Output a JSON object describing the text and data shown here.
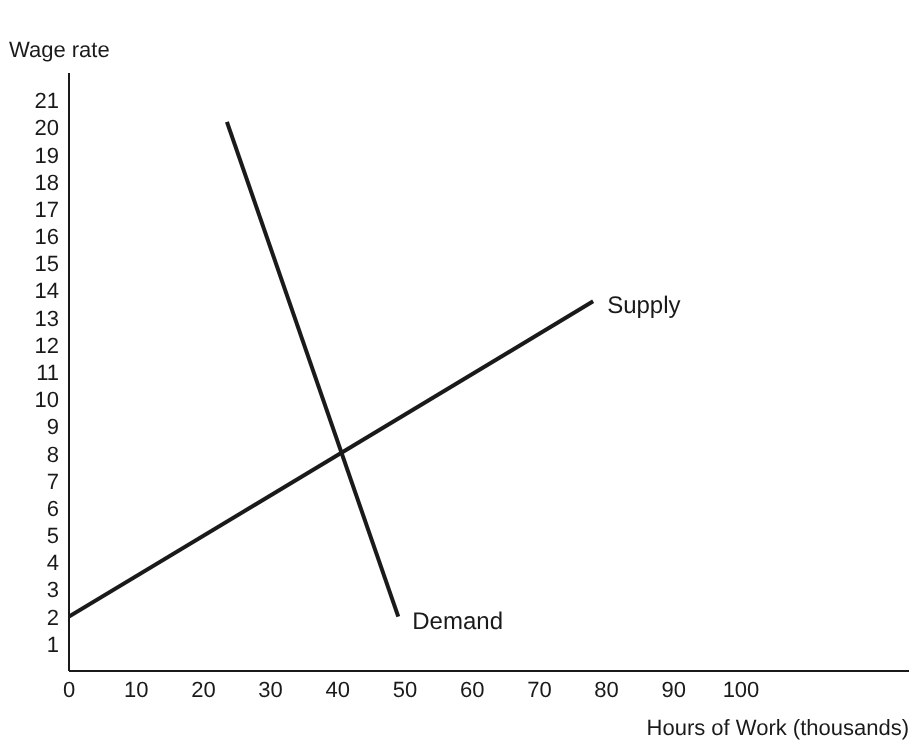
{
  "chart_data": {
    "type": "line",
    "xlabel": "Hours of Work (thousands)",
    "ylabel": "Wage rate",
    "xlim": [
      0,
      125
    ],
    "ylim": [
      0,
      22
    ],
    "xticks": [
      0,
      10,
      20,
      30,
      40,
      50,
      60,
      70,
      80,
      90,
      100
    ],
    "yticks": [
      1,
      2,
      3,
      4,
      5,
      6,
      7,
      8,
      9,
      10,
      11,
      12,
      13,
      14,
      15,
      16,
      17,
      18,
      19,
      20,
      21
    ],
    "series": [
      {
        "name": "Supply",
        "color": "#1a1a1a",
        "x": [
          0,
          78
        ],
        "values": [
          2,
          13.6
        ]
      },
      {
        "name": "Demand",
        "color": "#1a1a1a",
        "x": [
          23.5,
          49
        ],
        "values": [
          20.2,
          2
        ]
      }
    ],
    "grid": false
  }
}
